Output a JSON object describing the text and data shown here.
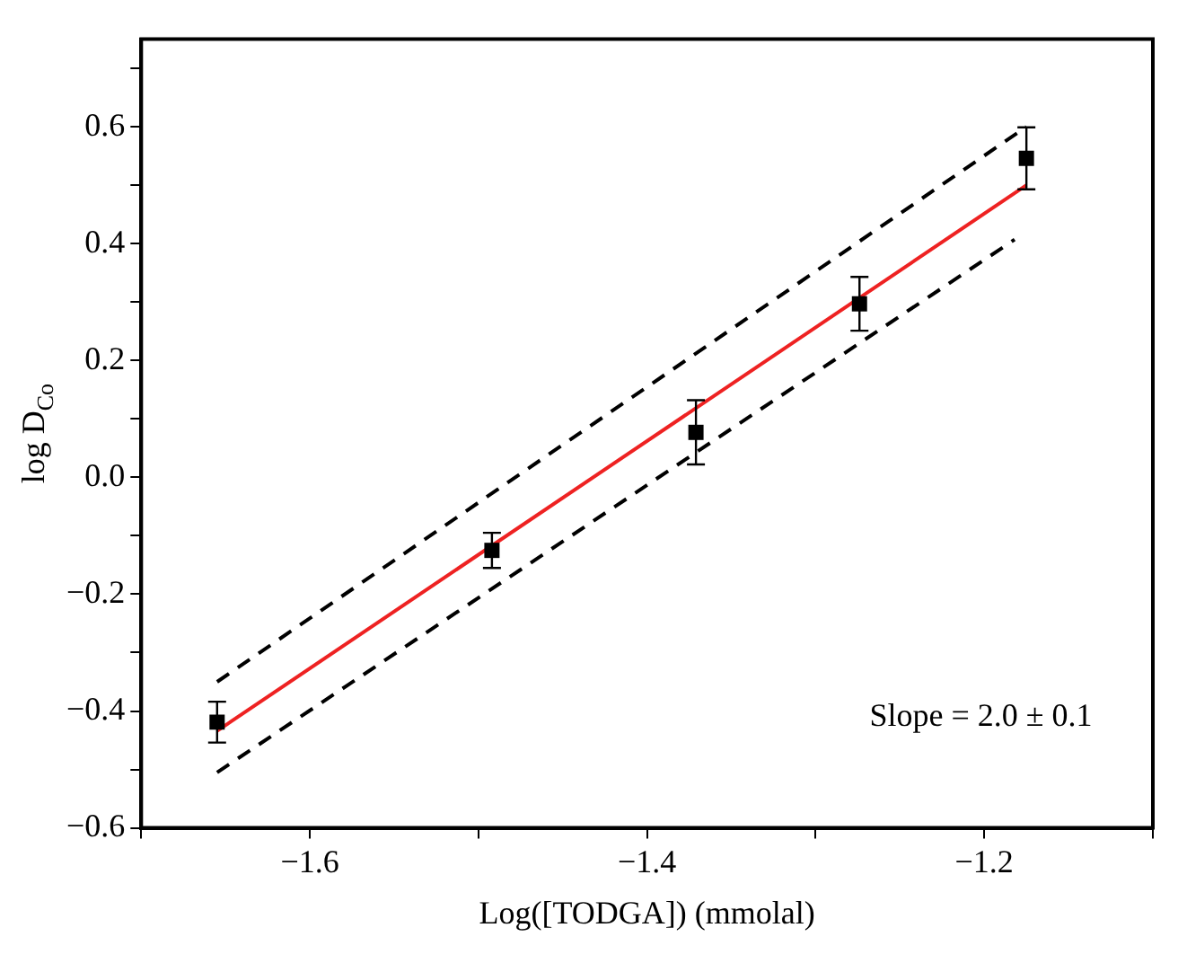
{
  "chart_data": {
    "type": "scatter",
    "xlabel": "Log([TODGA]) (mmolal)",
    "ylabel": "log D$_{Co}$",
    "xlim": [
      -1.7,
      -1.1
    ],
    "ylim": [
      -0.6,
      0.75
    ],
    "xticks": [
      {
        "value": -1.7,
        "label": null
      },
      -1.6,
      {
        "value": -1.5,
        "label": null
      },
      -1.4,
      {
        "value": -1.3,
        "label": null
      },
      -1.2,
      {
        "value": -1.1,
        "label": null
      }
    ],
    "yticks": [
      -0.6,
      {
        "value": -0.5,
        "label": null
      },
      -0.4,
      {
        "value": -0.3,
        "label": null
      },
      -0.2,
      {
        "value": -0.1,
        "label": null
      },
      {
        "value": 0,
        "label": "0.0"
      },
      {
        "value": 0.1,
        "label": null
      },
      0.2,
      {
        "value": 0.3,
        "label": null
      },
      0.4,
      {
        "value": 0.5,
        "label": null
      },
      0.6,
      {
        "value": 0.7,
        "label": null
      }
    ],
    "grid": false,
    "legend": false,
    "annotations": [
      "Slope = 2.0 ± 0.1"
    ],
    "series": [
      {
        "type": "scatter",
        "color": "#000000",
        "marker": "square",
        "x": [
          -1.655,
          -1.492,
          -1.371,
          -1.274,
          -1.175
        ],
        "values": [
          -0.419,
          -0.125,
          0.077,
          0.297,
          0.546
        ],
        "errors": [
          0.035,
          0.03,
          0.055,
          0.046,
          0.053
        ]
      },
      {
        "type": "line",
        "color": "#ee2222",
        "marker": "none",
        "line_style": "solid",
        "x": [
          -1.655,
          -1.175
        ],
        "values": [
          -0.434,
          0.5
        ]
      },
      {
        "type": "line",
        "color": "#000000",
        "marker": "none",
        "line_style": "dashed",
        "x": [
          -1.655,
          -1.175
        ],
        "values": [
          -0.35,
          0.6
        ]
      },
      {
        "type": "line",
        "color": "#000000",
        "marker": "none",
        "line_style": "dashed",
        "x": [
          -1.655,
          -1.182
        ],
        "values": [
          -0.505,
          0.407
        ]
      }
    ]
  }
}
